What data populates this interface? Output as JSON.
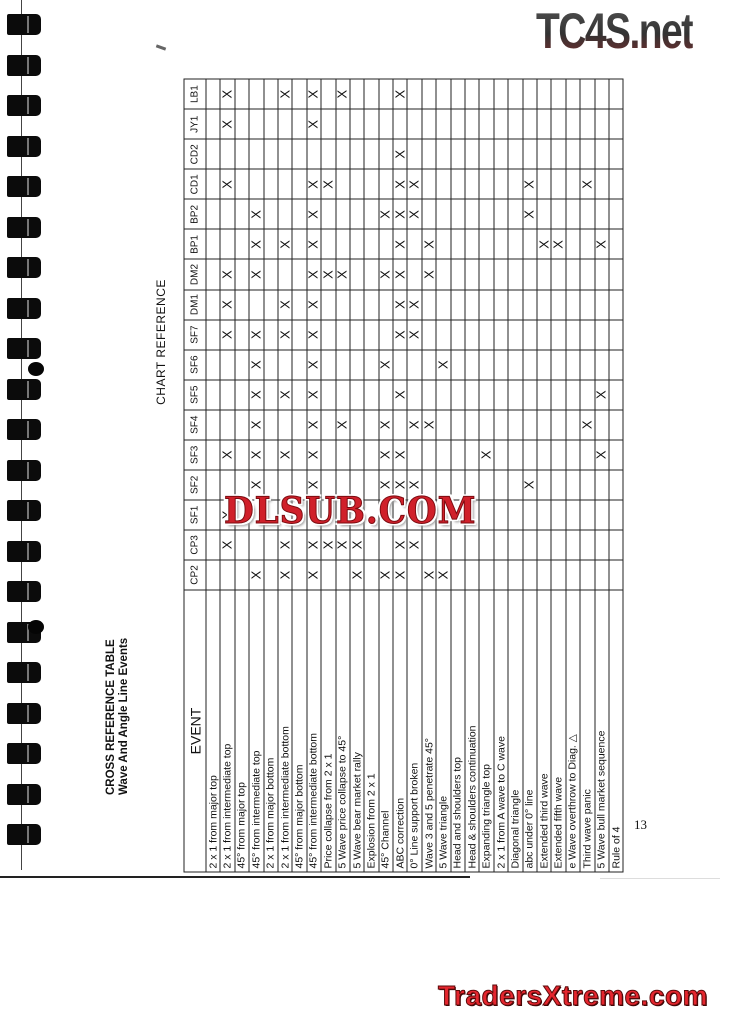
{
  "document": {
    "title": "CROSS REFERENCE TABLE",
    "subtitle": "Wave And Angle Line Events",
    "chart_reference_label": "CHART REFERENCE",
    "page_number": "13",
    "event_header": "EVENT",
    "mark_symbol": "X"
  },
  "table": {
    "columns": [
      "CP2",
      "CP3",
      "SF1",
      "SF2",
      "SF3",
      "SF4",
      "SF5",
      "SF6",
      "SF7",
      "DM1",
      "DM2",
      "BP1",
      "BP2",
      "CD1",
      "CD2",
      "JY1",
      "LB1"
    ],
    "events": [
      {
        "label": "2 x 1 from major top",
        "marks": []
      },
      {
        "label": "2 x 1 from intermediate top",
        "marks": [
          "CP3",
          "SF1",
          "SF3",
          "SF7",
          "DM1",
          "DM2",
          "CD1",
          "JY1",
          "LB1"
        ]
      },
      {
        "label": "45° from major top",
        "marks": []
      },
      {
        "label": "45° from intermediate top",
        "marks": [
          "CP2",
          "SF2",
          "SF3",
          "SF4",
          "SF5",
          "SF6",
          "SF7",
          "DM2",
          "BP1",
          "BP2"
        ]
      },
      {
        "label": "2 x 1 from major bottom",
        "marks": []
      },
      {
        "label": "2 x 1 from intermediate bottom",
        "marks": [
          "CP2",
          "CP3",
          "SF3",
          "SF5",
          "SF7",
          "DM1",
          "BP1",
          "LB1"
        ]
      },
      {
        "label": "45° from major bottom",
        "marks": []
      },
      {
        "label": "45° from intermediate bottom",
        "marks": [
          "CP2",
          "CP3",
          "SF2",
          "SF3",
          "SF4",
          "SF5",
          "SF6",
          "SF7",
          "DM1",
          "DM2",
          "BP1",
          "BP2",
          "CD1",
          "JY1",
          "LB1"
        ]
      },
      {
        "label": "Price collapse from 2 x 1",
        "marks": [
          "CP3",
          "DM2",
          "CD1"
        ]
      },
      {
        "label": "5 Wave price collapse to 45°",
        "marks": [
          "CP3",
          "SF4",
          "DM2",
          "LB1"
        ]
      },
      {
        "label": "5 Wave bear market rally",
        "marks": [
          "CP2",
          "CP3"
        ]
      },
      {
        "label": "Explosion from 2 x 1",
        "marks": []
      },
      {
        "label": "45° Channel",
        "marks": [
          "CP2",
          "SF2",
          "SF3",
          "SF4",
          "SF6",
          "DM2",
          "BP2"
        ]
      },
      {
        "label": "ABC correction",
        "marks": [
          "CP2",
          "CP3",
          "SF2",
          "SF3",
          "SF5",
          "SF7",
          "DM1",
          "DM2",
          "BP1",
          "BP2",
          "CD1",
          "CD2",
          "LB1"
        ]
      },
      {
        "label": "0° Line support broken",
        "marks": [
          "CP3",
          "SF2",
          "SF4",
          "SF7",
          "DM1",
          "BP2",
          "CD1"
        ]
      },
      {
        "label": "Wave 3 and 5 penetrate 45°",
        "marks": [
          "CP2",
          "SF4",
          "DM2",
          "BP1"
        ]
      },
      {
        "label": "5 Wave triangle",
        "marks": [
          "CP2",
          "SF6"
        ]
      },
      {
        "label": "Head and shoulders top",
        "marks": []
      },
      {
        "label": "Head & shoulders continuation",
        "marks": []
      },
      {
        "label": "Expanding triangle top",
        "marks": [
          "SF3"
        ]
      },
      {
        "label": "2 x 1 from A wave to C wave",
        "marks": []
      },
      {
        "label": "Diagonal triangle",
        "marks": []
      },
      {
        "label": "abc under 0° line",
        "marks": [
          "SF2",
          "BP2",
          "CD1"
        ]
      },
      {
        "label": "Extended third wave",
        "marks": [
          "BP1"
        ]
      },
      {
        "label": "Extended fifth wave",
        "marks": [
          "BP1"
        ]
      },
      {
        "label": "e Wave overthrow to Diag. △",
        "marks": []
      },
      {
        "label": "Third wave panic",
        "marks": [
          "SF4",
          "CD1"
        ]
      },
      {
        "label": "5 Wave bull market sequence",
        "marks": [
          "SF3",
          "SF5",
          "BP1"
        ]
      },
      {
        "label": "Rule of 4",
        "marks": []
      }
    ]
  },
  "watermarks": {
    "top_right": "TC4S.net",
    "center": "DLSUB.COM",
    "bottom_right": "TradersXtreme.com"
  }
}
